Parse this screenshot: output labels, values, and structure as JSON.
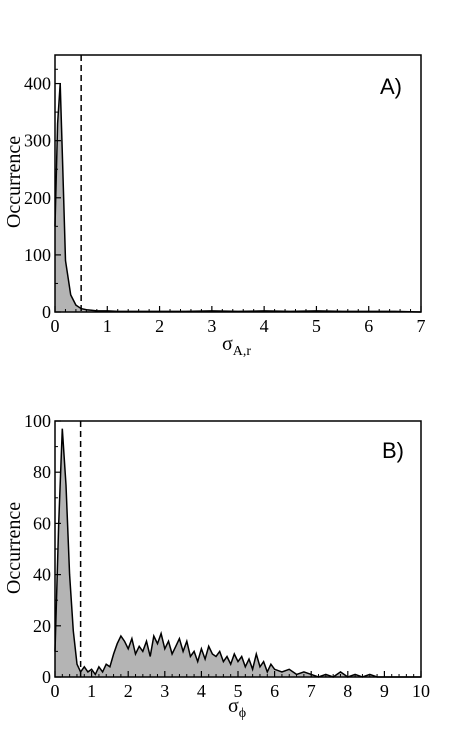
{
  "chart_data": [
    {
      "type": "area",
      "panel_label": "A)",
      "ylabel": "Occurrence",
      "xlabel_main": "σ",
      "xlabel_sub": "A,r",
      "xlim": [
        0,
        7
      ],
      "ylim": [
        0,
        450
      ],
      "xticks": [
        0,
        1,
        2,
        3,
        4,
        5,
        6,
        7
      ],
      "yticks": [
        0,
        100,
        200,
        300,
        400
      ],
      "threshold_x": 0.5,
      "grid": false,
      "series": [
        {
          "x": [
            0,
            0.05,
            0.1,
            0.15,
            0.2,
            0.3,
            0.4,
            0.5,
            0.6,
            0.7,
            0.8,
            1.0,
            1.2,
            1.5,
            2.0,
            2.5,
            3.0,
            3.5,
            4.0,
            4.5,
            5.0,
            5.5,
            6.0,
            6.5,
            7.0
          ],
          "y": [
            150,
            330,
            400,
            250,
            90,
            30,
            12,
            6,
            4,
            3,
            2,
            2,
            1,
            1,
            1,
            1,
            2,
            1,
            2,
            1,
            2,
            1,
            1,
            1,
            0
          ]
        }
      ]
    },
    {
      "type": "area",
      "panel_label": "B)",
      "ylabel": "Occurrence",
      "xlabel_main": "σ",
      "xlabel_sub": "ϕ",
      "xlim": [
        0,
        10
      ],
      "ylim": [
        0,
        100
      ],
      "xticks": [
        0,
        1,
        2,
        3,
        4,
        5,
        6,
        7,
        8,
        9,
        10
      ],
      "yticks": [
        0,
        20,
        40,
        60,
        80,
        100
      ],
      "threshold_x": 0.7,
      "grid": false,
      "series": [
        {
          "x": [
            0,
            0.1,
            0.2,
            0.3,
            0.4,
            0.5,
            0.6,
            0.7,
            0.8,
            0.9,
            1.0,
            1.1,
            1.2,
            1.3,
            1.4,
            1.5,
            1.6,
            1.7,
            1.8,
            1.9,
            2.0,
            2.1,
            2.2,
            2.3,
            2.4,
            2.5,
            2.6,
            2.7,
            2.8,
            2.9,
            3.0,
            3.1,
            3.2,
            3.3,
            3.4,
            3.5,
            3.6,
            3.7,
            3.8,
            3.9,
            4.0,
            4.1,
            4.2,
            4.3,
            4.4,
            4.5,
            4.6,
            4.7,
            4.8,
            4.9,
            5.0,
            5.1,
            5.2,
            5.3,
            5.4,
            5.5,
            5.6,
            5.7,
            5.8,
            5.9,
            6.0,
            6.2,
            6.4,
            6.6,
            6.8,
            7.0,
            7.2,
            7.4,
            7.6,
            7.8,
            8.0,
            8.2,
            8.4,
            8.6,
            8.8,
            9.0,
            9.5,
            10.0
          ],
          "y": [
            10,
            60,
            97,
            75,
            40,
            18,
            5,
            2,
            4,
            2,
            3,
            1,
            4,
            2,
            5,
            4,
            9,
            13,
            16,
            14,
            11,
            15,
            9,
            12,
            10,
            14,
            8,
            16,
            13,
            17,
            11,
            14,
            9,
            12,
            15,
            10,
            14,
            8,
            10,
            6,
            11,
            7,
            12,
            9,
            8,
            10,
            6,
            8,
            5,
            9,
            6,
            8,
            4,
            7,
            3,
            9,
            4,
            6,
            2,
            5,
            3,
            2,
            3,
            1,
            2,
            1,
            0,
            1,
            0,
            2,
            0,
            1,
            0,
            1,
            0,
            0,
            0,
            0
          ]
        }
      ]
    }
  ]
}
